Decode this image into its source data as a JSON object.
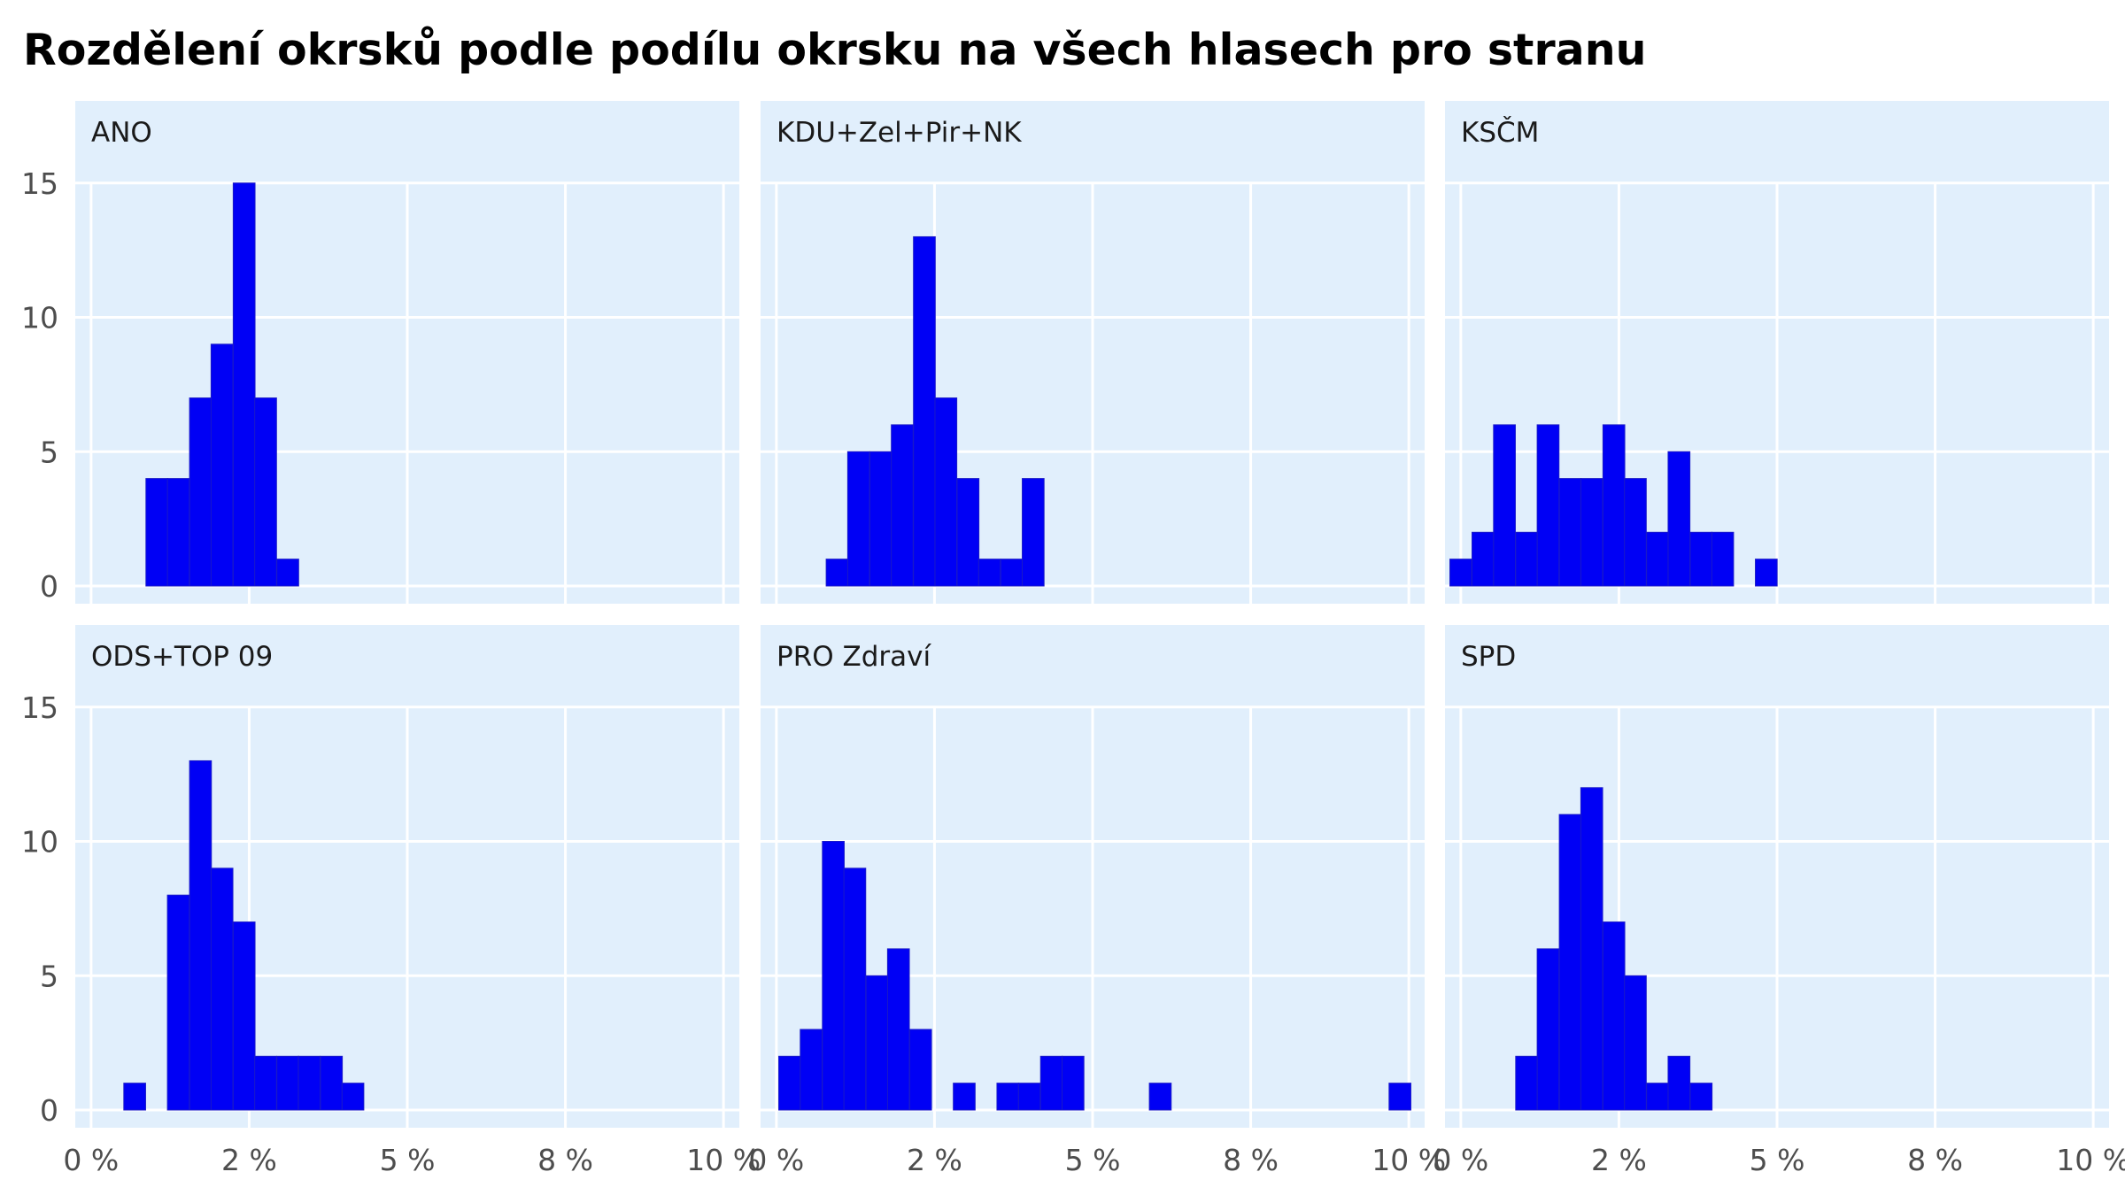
{
  "chart_data": {
    "type": "bar",
    "title": "Rozdělení okrsků podle podílu okrsku na všech hlasech pro stranu",
    "xlabel": "",
    "ylabel": "",
    "xlim": [
      -0.25,
      10.25
    ],
    "ylim": [
      0,
      17
    ],
    "x_ticks": [
      0,
      2.5,
      5,
      7.5,
      10
    ],
    "x_tick_labels": [
      "0 %",
      "2 %",
      "5 %",
      "8 %",
      "10 %"
    ],
    "y_ticks": [
      0,
      5,
      10,
      15
    ],
    "y_tick_labels": [
      "0",
      "5",
      "10",
      "15"
    ],
    "bin_width": 0.345,
    "grid": true,
    "bar_color": "#0000f5",
    "panel_background": "#e1effc",
    "panels": [
      {
        "label": "ANO",
        "bins": [
          {
            "x": 1.04,
            "count": 4
          },
          {
            "x": 1.38,
            "count": 4
          },
          {
            "x": 1.73,
            "count": 7
          },
          {
            "x": 2.07,
            "count": 9
          },
          {
            "x": 2.42,
            "count": 15
          },
          {
            "x": 2.76,
            "count": 7
          },
          {
            "x": 3.11,
            "count": 1
          }
        ]
      },
      {
        "label": "KDU+Zel+Pir+NK",
        "bins": [
          {
            "x": 0.96,
            "count": 1
          },
          {
            "x": 1.3,
            "count": 5
          },
          {
            "x": 1.65,
            "count": 5
          },
          {
            "x": 1.99,
            "count": 6
          },
          {
            "x": 2.34,
            "count": 13
          },
          {
            "x": 2.68,
            "count": 7
          },
          {
            "x": 3.03,
            "count": 4
          },
          {
            "x": 3.37,
            "count": 1
          },
          {
            "x": 3.72,
            "count": 1
          },
          {
            "x": 4.06,
            "count": 4
          }
        ]
      },
      {
        "label": "KSČM",
        "bins": [
          {
            "x": 0.0,
            "count": 1
          },
          {
            "x": 0.35,
            "count": 2
          },
          {
            "x": 0.69,
            "count": 6
          },
          {
            "x": 1.04,
            "count": 2
          },
          {
            "x": 1.38,
            "count": 6
          },
          {
            "x": 1.73,
            "count": 4
          },
          {
            "x": 2.07,
            "count": 4
          },
          {
            "x": 2.42,
            "count": 6
          },
          {
            "x": 2.76,
            "count": 4
          },
          {
            "x": 3.11,
            "count": 2
          },
          {
            "x": 3.45,
            "count": 5
          },
          {
            "x": 3.8,
            "count": 2
          },
          {
            "x": 4.14,
            "count": 2
          },
          {
            "x": 4.83,
            "count": 1
          }
        ]
      },
      {
        "label": "ODS+TOP 09",
        "bins": [
          {
            "x": 0.69,
            "count": 1
          },
          {
            "x": 1.38,
            "count": 8
          },
          {
            "x": 1.73,
            "count": 13
          },
          {
            "x": 2.07,
            "count": 9
          },
          {
            "x": 2.42,
            "count": 7
          },
          {
            "x": 2.76,
            "count": 2
          },
          {
            "x": 3.11,
            "count": 2
          },
          {
            "x": 3.45,
            "count": 2
          },
          {
            "x": 3.8,
            "count": 2
          },
          {
            "x": 4.14,
            "count": 1
          }
        ]
      },
      {
        "label": "PRO Zdraví",
        "bins": [
          {
            "x": 0.21,
            "count": 2
          },
          {
            "x": 0.55,
            "count": 3
          },
          {
            "x": 0.9,
            "count": 10
          },
          {
            "x": 1.24,
            "count": 9
          },
          {
            "x": 1.59,
            "count": 5
          },
          {
            "x": 1.93,
            "count": 6
          },
          {
            "x": 2.28,
            "count": 3
          },
          {
            "x": 2.97,
            "count": 1
          },
          {
            "x": 3.66,
            "count": 1
          },
          {
            "x": 4.0,
            "count": 1
          },
          {
            "x": 4.35,
            "count": 2
          },
          {
            "x": 4.69,
            "count": 2
          },
          {
            "x": 6.07,
            "count": 1
          },
          {
            "x": 9.86,
            "count": 1
          }
        ]
      },
      {
        "label": "SPD",
        "bins": [
          {
            "x": 1.04,
            "count": 2
          },
          {
            "x": 1.38,
            "count": 6
          },
          {
            "x": 1.73,
            "count": 11
          },
          {
            "x": 2.07,
            "count": 12
          },
          {
            "x": 2.42,
            "count": 7
          },
          {
            "x": 2.76,
            "count": 5
          },
          {
            "x": 3.11,
            "count": 1
          },
          {
            "x": 3.45,
            "count": 2
          },
          {
            "x": 3.8,
            "count": 1
          }
        ]
      }
    ]
  }
}
